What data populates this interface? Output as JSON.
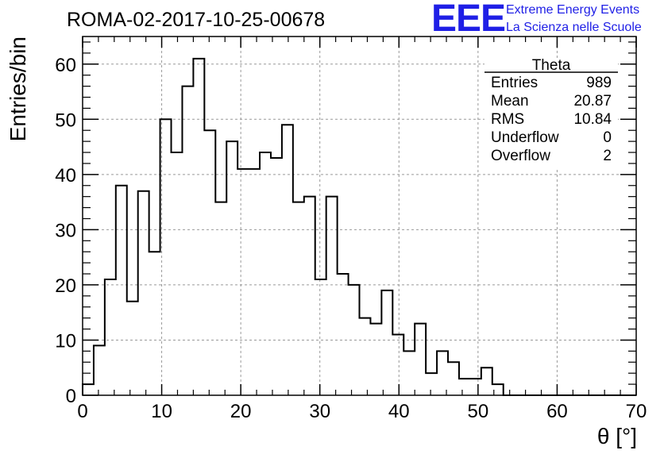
{
  "logo": {
    "mark": "EEE",
    "line1": "Extreme Energy Events",
    "line2": "La Scienza nelle Scuole",
    "color": "#1f1fe6"
  },
  "chart_data": {
    "type": "histogram",
    "title": "ROMA-02-2017-10-25-00678",
    "xlabel": "θ [°]",
    "ylabel": "Entries/bin",
    "xlim": [
      0,
      70
    ],
    "ylim": [
      0,
      65
    ],
    "grid": true,
    "bin_width": 1.4,
    "bin_start": 0,
    "values": [
      2,
      9,
      21,
      38,
      17,
      37,
      26,
      50,
      44,
      56,
      61,
      48,
      35,
      46,
      41,
      41,
      44,
      43,
      49,
      35,
      36,
      21,
      36,
      22,
      20,
      14,
      13,
      19,
      11,
      8,
      13,
      4,
      8,
      6,
      3,
      3,
      5,
      2,
      0,
      0,
      0,
      0,
      0,
      0,
      0,
      0,
      0,
      0,
      0,
      0
    ],
    "x_ticks": [
      "0",
      "10",
      "20",
      "30",
      "40",
      "50",
      "60",
      "70"
    ],
    "y_ticks": [
      "0",
      "10",
      "20",
      "30",
      "40",
      "50",
      "60"
    ],
    "stats_box": {
      "placement": "top-right",
      "title": "Theta",
      "rows": [
        {
          "label": "Entries",
          "value": "989"
        },
        {
          "label": "Mean",
          "value": "20.87"
        },
        {
          "label": "RMS",
          "value": "10.84"
        },
        {
          "label": "Underflow",
          "value": "0"
        },
        {
          "label": "Overflow",
          "value": "2"
        }
      ]
    }
  }
}
